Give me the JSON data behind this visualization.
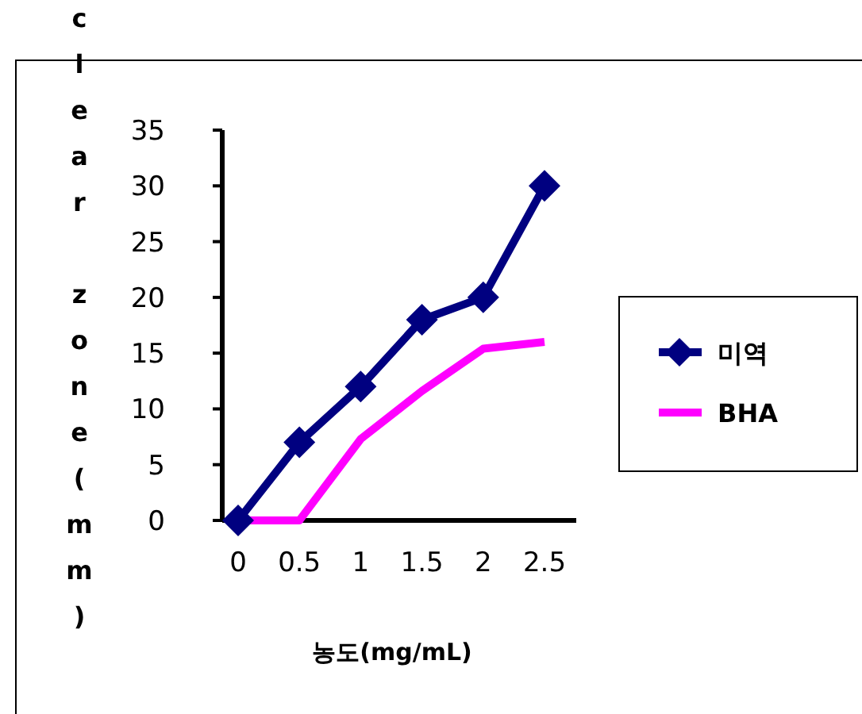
{
  "chart_data": {
    "type": "line",
    "xlabel": "농도(mg/mL)",
    "ylabel": "clear zone(mm)",
    "categories": [
      "0",
      "0.5",
      "1",
      "1.5",
      "2",
      "2.5"
    ],
    "series": [
      {
        "name": "미역",
        "color": "#000080",
        "marker": "diamond",
        "values": [
          0,
          7,
          12,
          18,
          20,
          30
        ]
      },
      {
        "name": "BHA",
        "color": "#ff00ff",
        "marker": "none",
        "values": [
          0,
          0,
          7.3,
          11.6,
          15.4,
          16
        ]
      }
    ],
    "ylim": [
      0,
      35
    ],
    "yticks": [
      0,
      5,
      10,
      15,
      20,
      25,
      30,
      35
    ],
    "grid": false,
    "legend": "right"
  }
}
